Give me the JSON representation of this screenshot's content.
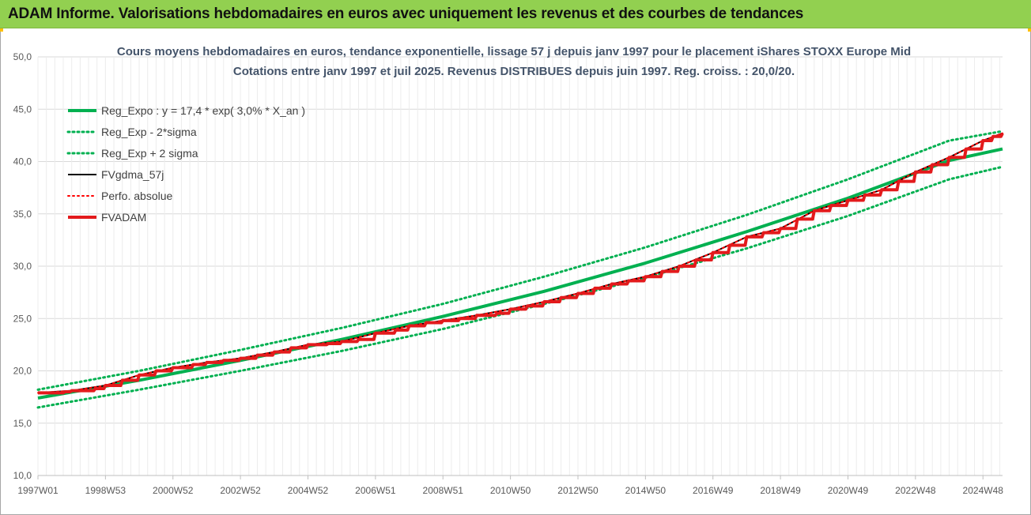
{
  "banner": {
    "title": "ADAM Informe. Valorisations hebdomadaires en euros avec uniquement les revenus et des courbes de tendances"
  },
  "chart_data": {
    "type": "line",
    "title": "Cours moyens hebdomadaires en euros, tendance exponentielle, lissage 57 j depuis janv 1997  pour le placement iShares STOXX Europe Mid",
    "subtitle": "Cotations entre janv 1997 et juil 2025. Revenus DISTRIBUES depuis juin 1997. Reg. croiss. : 20,0/20.",
    "xlabel": "",
    "ylabel": "",
    "ylim": [
      10,
      50
    ],
    "yticks": [
      "10,0",
      "15,0",
      "20,0",
      "25,0",
      "30,0",
      "35,0",
      "40,0",
      "45,0",
      "50,0"
    ],
    "x_range_years": [
      1997.0,
      2025.58
    ],
    "xticks": [
      {
        "label": "1997W01",
        "year": 1997.0
      },
      {
        "label": "1998W53",
        "year": 1999.0
      },
      {
        "label": "2000W52",
        "year": 2001.0
      },
      {
        "label": "2002W52",
        "year": 2003.0
      },
      {
        "label": "2004W52",
        "year": 2005.0
      },
      {
        "label": "2006W51",
        "year": 2007.0
      },
      {
        "label": "2008W51",
        "year": 2009.0
      },
      {
        "label": "2010W50",
        "year": 2011.0
      },
      {
        "label": "2012W50",
        "year": 2013.0
      },
      {
        "label": "2014W50",
        "year": 2015.0
      },
      {
        "label": "2016W49",
        "year": 2017.0
      },
      {
        "label": "2018W49",
        "year": 2019.0
      },
      {
        "label": "2020W49",
        "year": 2021.0
      },
      {
        "label": "2022W48",
        "year": 2023.0
      },
      {
        "label": "2024W48",
        "year": 2025.0
      }
    ],
    "grid": true,
    "legend_position": "top-left",
    "series": [
      {
        "name": "Reg_Expo : y = 17,4 * exp( 3,0% *  X_an )",
        "color": "#00b050",
        "style": "solid",
        "width": 4,
        "x": [
          1997.0,
          2000.0,
          2003.0,
          2006.0,
          2009.0,
          2012.0,
          2015.0,
          2018.0,
          2021.0,
          2024.0,
          2025.58
        ],
        "y": [
          17.4,
          19.1,
          21.0,
          23.0,
          25.2,
          27.6,
          30.3,
          33.3,
          36.5,
          40.1,
          41.2
        ]
      },
      {
        "name": "Reg_Exp - 2*sigma",
        "color": "#00b050",
        "style": "dotted",
        "width": 3,
        "x": [
          1997.0,
          2000.0,
          2003.0,
          2006.0,
          2009.0,
          2012.0,
          2015.0,
          2018.0,
          2021.0,
          2024.0,
          2025.58
        ],
        "y": [
          16.5,
          18.2,
          20.0,
          21.9,
          24.0,
          26.4,
          28.9,
          31.7,
          34.8,
          38.3,
          39.5
        ]
      },
      {
        "name": "Reg_Exp + 2 sigma",
        "color": "#00b050",
        "style": "dotted",
        "width": 3,
        "x": [
          1997.0,
          2000.0,
          2003.0,
          2006.0,
          2009.0,
          2012.0,
          2015.0,
          2018.0,
          2021.0,
          2024.0,
          2025.58
        ],
        "y": [
          18.2,
          20.0,
          22.0,
          24.1,
          26.4,
          29.0,
          31.8,
          34.9,
          38.3,
          42.0,
          42.9
        ]
      },
      {
        "name": "FVgdma_57j",
        "color": "#000000",
        "style": "solid",
        "width": 2,
        "x": [
          1997.0,
          1998.0,
          1999.0,
          2000.0,
          2001.0,
          2002.0,
          2003.0,
          2004.0,
          2005.0,
          2006.0,
          2007.0,
          2008.0,
          2009.0,
          2010.0,
          2011.0,
          2012.0,
          2013.0,
          2014.0,
          2015.0,
          2016.0,
          2017.0,
          2018.0,
          2019.0,
          2020.0,
          2021.0,
          2022.0,
          2023.0,
          2024.0,
          2025.0,
          2025.58
        ],
        "y": [
          17.9,
          18.1,
          18.6,
          19.6,
          20.3,
          20.8,
          21.2,
          21.8,
          22.5,
          22.8,
          23.6,
          24.3,
          24.8,
          25.3,
          25.9,
          26.6,
          27.4,
          28.3,
          29.0,
          30.0,
          31.3,
          32.8,
          33.6,
          35.3,
          36.3,
          37.3,
          39.0,
          40.4,
          42.0,
          42.7
        ]
      },
      {
        "name": "Perfo. absolue",
        "color": "#ff0000",
        "style": "dotted",
        "width": 2,
        "x": [
          1997.0,
          1998.0,
          1999.0,
          2000.0,
          2001.0,
          2002.0,
          2003.0,
          2004.0,
          2005.0,
          2006.0,
          2007.0,
          2008.0,
          2009.0,
          2010.0,
          2011.0,
          2012.0,
          2013.0,
          2014.0,
          2015.0,
          2016.0,
          2017.0,
          2018.0,
          2019.0,
          2020.0,
          2021.0,
          2022.0,
          2023.0,
          2024.0,
          2025.0,
          2025.58
        ],
        "y": [
          17.9,
          18.1,
          18.6,
          19.6,
          20.3,
          20.8,
          21.2,
          21.8,
          22.5,
          22.8,
          23.6,
          24.3,
          24.8,
          25.3,
          25.9,
          26.6,
          27.4,
          28.3,
          29.0,
          30.0,
          31.3,
          32.8,
          33.6,
          35.3,
          36.3,
          37.3,
          39.0,
          40.4,
          42.0,
          42.7
        ]
      },
      {
        "name": "FVADAM",
        "color": "#e31a1c",
        "style": "solid",
        "width": 4,
        "x": [
          1997.0,
          1997.8,
          1998.0,
          1998.7,
          1999.0,
          1999.5,
          2000.0,
          2000.5,
          2001.0,
          2001.6,
          2002.0,
          2002.5,
          2003.0,
          2003.5,
          2004.0,
          2004.5,
          2005.0,
          2005.6,
          2006.0,
          2006.5,
          2007.0,
          2007.6,
          2008.0,
          2008.5,
          2009.0,
          2009.5,
          2010.0,
          2010.6,
          2011.0,
          2011.5,
          2012.0,
          2012.5,
          2013.0,
          2013.5,
          2014.0,
          2014.5,
          2015.0,
          2015.5,
          2016.0,
          2016.5,
          2017.0,
          2017.5,
          2018.0,
          2018.5,
          2019.0,
          2019.5,
          2020.0,
          2020.5,
          2021.0,
          2021.5,
          2022.0,
          2022.5,
          2023.0,
          2023.5,
          2024.0,
          2024.5,
          2025.0,
          2025.3,
          2025.58
        ],
        "y": [
          17.9,
          18.0,
          18.1,
          18.3,
          18.6,
          19.1,
          19.6,
          20.0,
          20.3,
          20.6,
          20.8,
          21.0,
          21.2,
          21.5,
          21.8,
          22.2,
          22.5,
          22.6,
          22.8,
          23.0,
          23.6,
          23.9,
          24.3,
          24.6,
          24.8,
          25.0,
          25.3,
          25.5,
          25.9,
          26.2,
          26.6,
          27.0,
          27.4,
          27.9,
          28.3,
          28.6,
          29.0,
          29.5,
          30.0,
          30.6,
          31.3,
          32.0,
          32.8,
          33.2,
          33.6,
          34.5,
          35.3,
          35.8,
          36.3,
          36.8,
          37.3,
          38.1,
          39.0,
          39.7,
          40.4,
          41.2,
          42.0,
          42.4,
          42.7
        ]
      }
    ]
  }
}
